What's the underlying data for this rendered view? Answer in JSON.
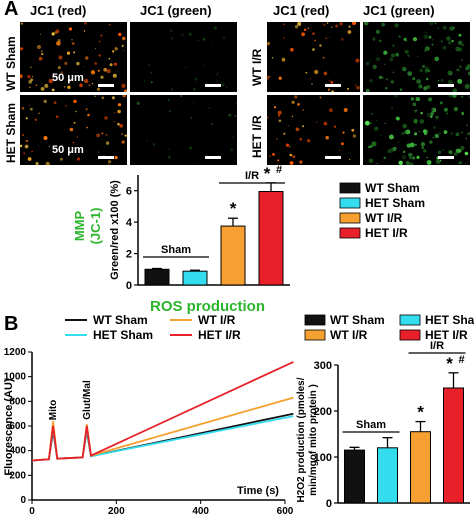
{
  "panel_a": {
    "letter": "A",
    "left_columns": [
      "JC1 (red)",
      "JC1 (green)"
    ],
    "right_columns": [
      "JC1 (red)",
      "JC1 (green)"
    ],
    "left_rows": [
      "WT Sham",
      "HET Sham"
    ],
    "right_rows": [
      "WT I/R",
      "HET I/R"
    ],
    "scale_label": "50 μm",
    "mmp_label": "MMP",
    "mmp_sub": "(JC-1)",
    "mmp_color": "#2db52d",
    "sham_bracket": "Sham",
    "ir_bracket": "I/R"
  },
  "panel_b": {
    "letter": "B",
    "ros_title": "ROS production",
    "ros_title_color": "#2db52d",
    "annot_mito": "Mito",
    "annot_glutmal": "Glut/Mal",
    "sham_bracket": "Sham",
    "ir_bracket": "I/R"
  },
  "chart_data": [
    {
      "type": "bar",
      "categories": [
        "WT Sham",
        "HET Sham",
        "WT I/R",
        "HET I/R"
      ],
      "values": [
        1.0,
        0.88,
        3.75,
        5.95
      ],
      "errors": [
        0.05,
        0.06,
        0.5,
        0.55
      ],
      "colors": [
        "#111111",
        "#33ddee",
        "#f5a030",
        "#e8202a"
      ],
      "significance": [
        "",
        "",
        "*",
        "* #"
      ],
      "ylabel": "Green/red x100 (%)",
      "yticks": [
        0,
        2,
        4,
        6
      ],
      "ylim": [
        0,
        7
      ],
      "legend": [
        "WT Sham",
        "HET Sham",
        "WT I/R",
        "HET I/R"
      ],
      "legend_position": "right"
    },
    {
      "type": "line",
      "xlabel": "Time (s)",
      "ylabel": "Fluorescence (AU)",
      "xlim": [
        0,
        600
      ],
      "ylim": [
        0,
        1200
      ],
      "xticks": [
        0,
        200,
        400,
        600
      ],
      "yticks": [
        0,
        200,
        400,
        600,
        800,
        1000,
        1200
      ],
      "series": [
        {
          "name": "WT Sham",
          "color": "#111111",
          "x": [
            0,
            40,
            50,
            60,
            120,
            130,
            140,
            620
          ],
          "y": [
            320,
            330,
            560,
            335,
            345,
            560,
            355,
            700
          ]
        },
        {
          "name": "HET Sham",
          "color": "#33ddee",
          "x": [
            0,
            40,
            50,
            60,
            120,
            130,
            140,
            620
          ],
          "y": [
            320,
            330,
            580,
            335,
            345,
            575,
            355,
            680
          ]
        },
        {
          "name": "WT I/R",
          "color": "#f5a030",
          "x": [
            0,
            40,
            50,
            60,
            120,
            130,
            140,
            620
          ],
          "y": [
            320,
            330,
            640,
            335,
            345,
            615,
            360,
            830
          ]
        },
        {
          "name": "HET I/R",
          "color": "#e8202a",
          "x": [
            0,
            40,
            50,
            60,
            120,
            130,
            140,
            620
          ],
          "y": [
            320,
            330,
            600,
            335,
            345,
            600,
            360,
            1120
          ]
        }
      ],
      "legend_position": "top"
    },
    {
      "type": "bar",
      "categories": [
        "WT Sham",
        "HET Sham",
        "WT I/R",
        "HET I/R"
      ],
      "values": [
        115,
        120,
        155,
        250
      ],
      "errors": [
        6,
        22,
        22,
        33
      ],
      "colors": [
        "#111111",
        "#33ddee",
        "#f5a030",
        "#e8202a"
      ],
      "significance": [
        "",
        "",
        "*",
        "* #"
      ],
      "ylabel": "H2O2 production (pmoles/ min/mgof mito protein )",
      "yticks": [
        0,
        100,
        200,
        300
      ],
      "ylim": [
        0,
        300
      ],
      "legend": [
        "WT Sham",
        "WT I/R",
        "HET Sham",
        "HET I/R"
      ],
      "legend_position": "top"
    }
  ]
}
